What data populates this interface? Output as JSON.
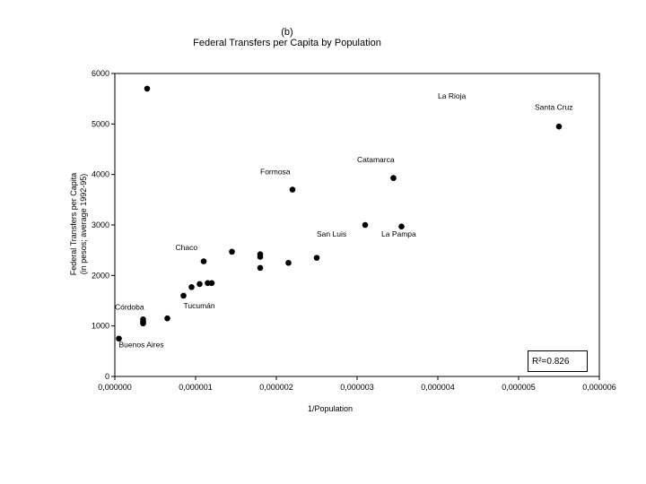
{
  "chart_data": {
    "type": "scatter",
    "title_line1": "(b)",
    "title_line2": "Federal Transfers per Capita by Population",
    "xlabel": "1/Population",
    "ylabel_line1": "Federal Transfers per Capita",
    "ylabel_line2": "(in pesos; average 1992-95)",
    "xlim": [
      0,
      6e-06
    ],
    "ylim": [
      0,
      6000
    ],
    "x_ticks": [
      0,
      1e-06,
      2e-06,
      3e-06,
      4e-06,
      5e-06,
      6e-06
    ],
    "x_tick_labels": [
      "0,000000",
      "0,000001",
      "0,000002",
      "0,000003",
      "0,000004",
      "0,000005",
      "0,000006"
    ],
    "y_ticks": [
      0,
      1000,
      2000,
      3000,
      4000,
      5000,
      6000
    ],
    "y_tick_labels": [
      "0",
      "1000",
      "2000",
      "3000",
      "4000",
      "5000",
      "6000"
    ],
    "grid": false,
    "annotation": "R²=0.826",
    "points": [
      {
        "x": 4e-07,
        "y": 5700
      },
      {
        "x": 5.5e-06,
        "y": 4950
      },
      {
        "x": 3.45e-06,
        "y": 3930
      },
      {
        "x": 2.2e-06,
        "y": 3700
      },
      {
        "x": 3.1e-06,
        "y": 3000
      },
      {
        "x": 3.55e-06,
        "y": 2970
      },
      {
        "x": 1.45e-06,
        "y": 2470
      },
      {
        "x": 1.8e-06,
        "y": 2420
      },
      {
        "x": 1.8e-06,
        "y": 2370
      },
      {
        "x": 1.1e-06,
        "y": 2280
      },
      {
        "x": 2.15e-06,
        "y": 2250
      },
      {
        "x": 2.5e-06,
        "y": 2350
      },
      {
        "x": 1.8e-06,
        "y": 2150
      },
      {
        "x": 1.15e-06,
        "y": 1850
      },
      {
        "x": 1.2e-06,
        "y": 1850
      },
      {
        "x": 1.05e-06,
        "y": 1830
      },
      {
        "x": 9.5e-07,
        "y": 1770
      },
      {
        "x": 8.5e-07,
        "y": 1600
      },
      {
        "x": 6.5e-07,
        "y": 1150
      },
      {
        "x": 3.5e-07,
        "y": 1130
      },
      {
        "x": 3.5e-07,
        "y": 1080
      },
      {
        "x": 3.5e-07,
        "y": 1050
      },
      {
        "x": 5e-08,
        "y": 750
      }
    ],
    "point_labels": [
      {
        "text": "La Rioja",
        "x": 4e-06,
        "y": 5500
      },
      {
        "text": "Santa Cruz",
        "x": 5.2e-06,
        "y": 5280
      },
      {
        "text": "Catamarca",
        "x": 3e-06,
        "y": 4240
      },
      {
        "text": "Formosa",
        "x": 1.8e-06,
        "y": 4000
      },
      {
        "text": "San Luis",
        "x": 2.5e-06,
        "y": 2770
      },
      {
        "text": "La Pampa",
        "x": 3.3e-06,
        "y": 2770
      },
      {
        "text": "Chaco",
        "x": 7.5e-07,
        "y": 2500
      },
      {
        "text": "Tucumán",
        "x": 8.5e-07,
        "y": 1350
      },
      {
        "text": "Córdoba",
        "x": 0.0,
        "y": 1320
      },
      {
        "text": "Buenos Aires",
        "x": 5e-08,
        "y": 580
      }
    ]
  }
}
